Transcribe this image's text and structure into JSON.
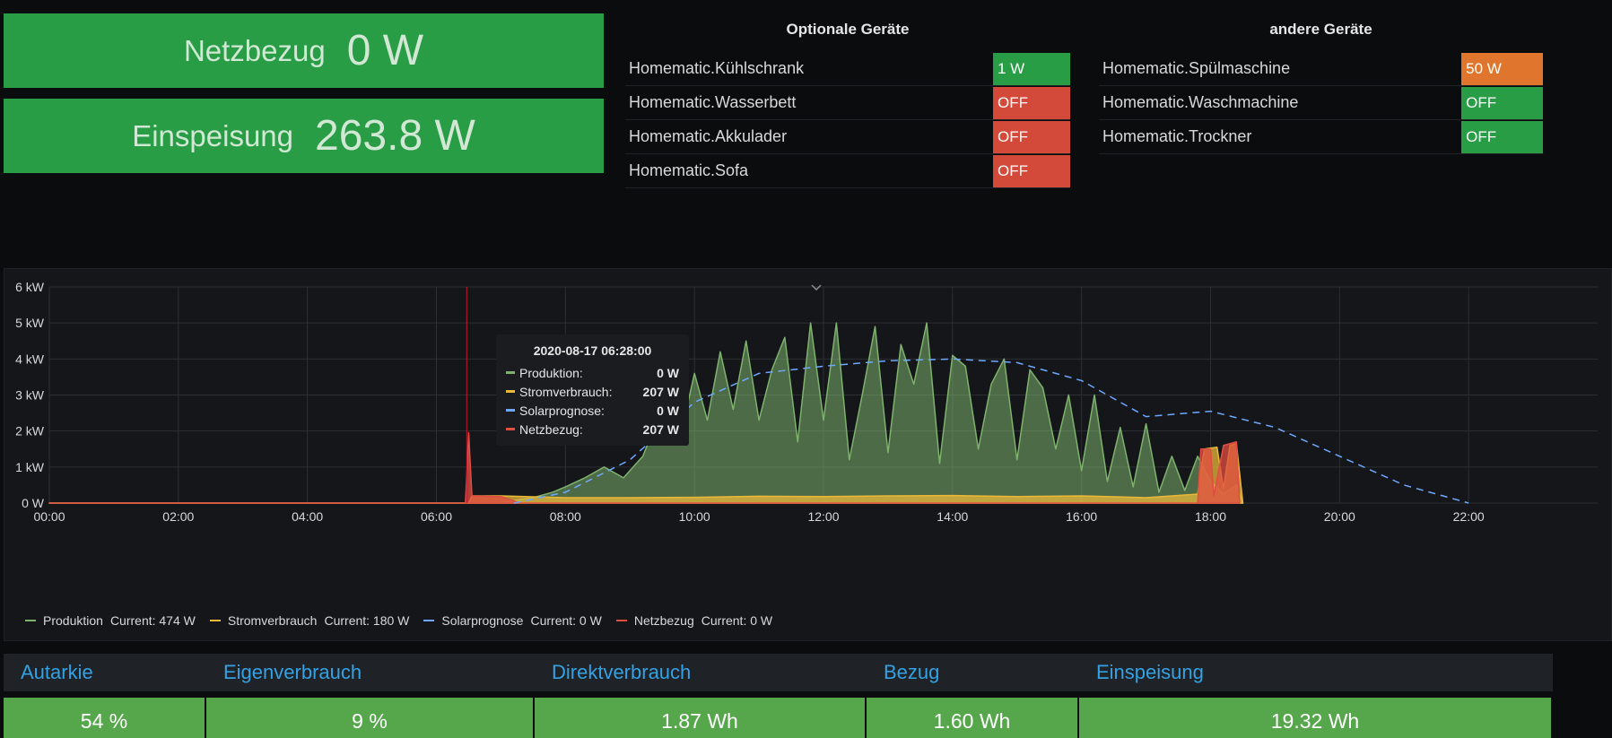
{
  "stats": {
    "netzbezug": {
      "label": "Netzbezug",
      "value": "0 W"
    },
    "einspeisung": {
      "label": "Einspeisung",
      "value": "263.8 W"
    }
  },
  "devices_optional": {
    "title": "Optionale Geräte",
    "items": [
      {
        "name": "Homematic.Kühlschrank",
        "value": "1 W",
        "color": "#299c46"
      },
      {
        "name": "Homematic.Wasserbett",
        "value": "OFF",
        "color": "#d44a3a"
      },
      {
        "name": "Homematic.Akkulader",
        "value": "OFF",
        "color": "#d44a3a"
      },
      {
        "name": "Homematic.Sofa",
        "value": "OFF",
        "color": "#d44a3a"
      }
    ]
  },
  "devices_other": {
    "title": "andere Geräte",
    "items": [
      {
        "name": "Homematic.Spülmaschine",
        "value": "50 W",
        "color": "#e0752d"
      },
      {
        "name": "Homematic.Waschmachine",
        "value": "OFF",
        "color": "#299c46"
      },
      {
        "name": "Homematic.Trockner",
        "value": "OFF",
        "color": "#299c46"
      }
    ]
  },
  "chart_data": {
    "type": "area",
    "x_ticks": [
      "00:00",
      "02:00",
      "04:00",
      "06:00",
      "08:00",
      "10:00",
      "12:00",
      "14:00",
      "16:00",
      "18:00",
      "20:00",
      "22:00"
    ],
    "y_ticks": [
      "0 W",
      "1 kW",
      "2 kW",
      "3 kW",
      "4 kW",
      "5 kW",
      "6 kW"
    ],
    "ylim": [
      0,
      6000
    ],
    "xlim_hours": [
      0,
      24
    ],
    "grid": true,
    "legend_position": "bottom",
    "series": [
      {
        "name": "Produktion",
        "color": "#7eb26d",
        "legend_current": "Current: 474 W",
        "points": [
          [
            0,
            0
          ],
          [
            6.5,
            0
          ],
          [
            7.0,
            20
          ],
          [
            7.5,
            150
          ],
          [
            7.8,
            300
          ],
          [
            8.0,
            450
          ],
          [
            8.3,
            700
          ],
          [
            8.6,
            1000
          ],
          [
            8.9,
            700
          ],
          [
            9.2,
            1300
          ],
          [
            9.4,
            2200
          ],
          [
            9.6,
            2800
          ],
          [
            9.8,
            2000
          ],
          [
            10.0,
            3600
          ],
          [
            10.2,
            2300
          ],
          [
            10.4,
            4200
          ],
          [
            10.6,
            2600
          ],
          [
            10.8,
            4500
          ],
          [
            11.0,
            2300
          ],
          [
            11.2,
            3700
          ],
          [
            11.4,
            4600
          ],
          [
            11.6,
            1700
          ],
          [
            11.8,
            5000
          ],
          [
            12.0,
            2300
          ],
          [
            12.2,
            5000
          ],
          [
            12.4,
            1200
          ],
          [
            12.6,
            3000
          ],
          [
            12.8,
            4900
          ],
          [
            13.0,
            1400
          ],
          [
            13.2,
            4400
          ],
          [
            13.4,
            3300
          ],
          [
            13.6,
            5000
          ],
          [
            13.8,
            1100
          ],
          [
            14.0,
            4100
          ],
          [
            14.2,
            3800
          ],
          [
            14.4,
            1500
          ],
          [
            14.6,
            3300
          ],
          [
            14.8,
            4000
          ],
          [
            15.0,
            1200
          ],
          [
            15.2,
            3700
          ],
          [
            15.4,
            3200
          ],
          [
            15.6,
            1500
          ],
          [
            15.8,
            3000
          ],
          [
            16.0,
            900
          ],
          [
            16.2,
            3000
          ],
          [
            16.4,
            600
          ],
          [
            16.6,
            2100
          ],
          [
            16.8,
            450
          ],
          [
            17.0,
            2200
          ],
          [
            17.2,
            300
          ],
          [
            17.4,
            1300
          ],
          [
            17.6,
            350
          ],
          [
            17.8,
            1300
          ],
          [
            18.0,
            600
          ],
          [
            18.2,
            250
          ],
          [
            18.4,
            500
          ],
          [
            18.5,
            0
          ]
        ]
      },
      {
        "name": "Stromverbrauch",
        "color": "#eab839",
        "legend_current": "Current: 180 W",
        "points": [
          [
            0,
            0
          ],
          [
            6.5,
            0
          ],
          [
            6.55,
            200
          ],
          [
            7.0,
            200
          ],
          [
            8.0,
            150
          ],
          [
            9.0,
            150
          ],
          [
            10.0,
            160
          ],
          [
            11.0,
            190
          ],
          [
            12.0,
            180
          ],
          [
            13.0,
            200
          ],
          [
            14.0,
            210
          ],
          [
            15.0,
            180
          ],
          [
            16.0,
            200
          ],
          [
            17.0,
            150
          ],
          [
            17.8,
            250
          ],
          [
            17.9,
            1500
          ],
          [
            18.1,
            1550
          ],
          [
            18.2,
            400
          ],
          [
            18.3,
            1600
          ],
          [
            18.4,
            1650
          ],
          [
            18.5,
            0
          ]
        ]
      },
      {
        "name": "Solarprognose",
        "color": "#6ea8fe",
        "legend_current": "Current: 0 W",
        "points": [
          [
            7.2,
            0
          ],
          [
            8,
            300
          ],
          [
            9,
            1200
          ],
          [
            10,
            2800
          ],
          [
            11,
            3600
          ],
          [
            12,
            3800
          ],
          [
            13,
            3950
          ],
          [
            14,
            4000
          ],
          [
            15,
            3900
          ],
          [
            16,
            3400
          ],
          [
            17,
            2400
          ],
          [
            18,
            2550
          ],
          [
            19,
            2100
          ],
          [
            20,
            1300
          ],
          [
            21,
            500
          ],
          [
            22,
            0
          ]
        ]
      },
      {
        "name": "Netzbezug",
        "color": "#e24d42",
        "legend_current": "Current: 0 W",
        "points": [
          [
            0,
            0
          ],
          [
            6.45,
            0
          ],
          [
            6.5,
            1950
          ],
          [
            6.55,
            200
          ],
          [
            7.0,
            180
          ],
          [
            7.3,
            0
          ],
          [
            17.8,
            0
          ],
          [
            17.85,
            1500
          ],
          [
            18.0,
            1500
          ],
          [
            18.05,
            200
          ],
          [
            18.2,
            1600
          ],
          [
            18.4,
            1700
          ],
          [
            18.45,
            0
          ]
        ]
      }
    ],
    "marker_time_hours": 6.47,
    "tooltip": {
      "title": "2020-08-17 06:28:00",
      "rows": [
        {
          "name": "Produktion:",
          "value": "0 W",
          "color": "#7eb26d"
        },
        {
          "name": "Stromverbrauch:",
          "value": "207 W",
          "color": "#eab839"
        },
        {
          "name": "Solarprognose:",
          "value": "0 W",
          "color": "#6ea8fe"
        },
        {
          "name": "Netzbezug:",
          "value": "207 W",
          "color": "#e24d42"
        }
      ]
    }
  },
  "summary": {
    "headers": [
      "Autarkie",
      "Eigenverbrauch",
      "Direktverbrauch",
      "Bezug",
      "Einspeisung"
    ],
    "values": [
      "54 %",
      "9 %",
      "1.87 Wh",
      "1.60 Wh",
      "19.32 Wh"
    ]
  }
}
